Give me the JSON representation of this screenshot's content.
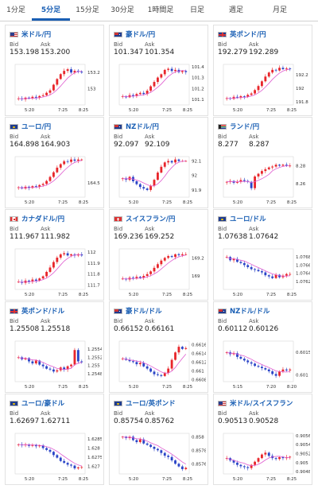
{
  "tabs": [
    {
      "label": "1分足",
      "active": false
    },
    {
      "label": "5分足",
      "active": true
    },
    {
      "label": "15分足",
      "active": false
    },
    {
      "label": "30分足",
      "active": false
    },
    {
      "label": "1時間足",
      "active": false
    },
    {
      "label": "日足",
      "active": false
    },
    {
      "label": "週足",
      "active": false
    },
    {
      "label": "月足",
      "active": false
    }
  ],
  "labels": {
    "bid": "Bid",
    "ask": "Ask"
  },
  "colors": {
    "up": "#e8262b",
    "down": "#2a44c7",
    "ma": "#e05cd0",
    "accent": "#1a5fb4"
  },
  "pairs": [
    {
      "name": "米ドル/円",
      "flag": "us-flag-icon",
      "bid": "153.198",
      "ask": "153.200",
      "chart_data": {
        "type": "candlestick",
        "x_ticks": [
          "5:20",
          "7:25",
          "8:25"
        ],
        "y_ticks": [
          "153.2",
          "153"
        ],
        "ylim": [
          152.8,
          153.3
        ],
        "trend": [
          152.88,
          152.87,
          152.89,
          152.88,
          152.9,
          152.89,
          152.91,
          152.92,
          152.95,
          152.98,
          153.05,
          153.12,
          153.18,
          153.22,
          153.24,
          153.2,
          153.22,
          153.21,
          153.2
        ]
      }
    },
    {
      "name": "豪ドル/円",
      "flag": "au-flag-icon",
      "bid": "101.347",
      "ask": "101.354",
      "chart_data": {
        "type": "candlestick",
        "x_ticks": [
          "5:20",
          "7:25",
          "8:25"
        ],
        "y_ticks": [
          "101.4",
          "101.3",
          "101.2",
          "101.1"
        ],
        "ylim": [
          101.05,
          101.42
        ],
        "trend": [
          101.13,
          101.12,
          101.14,
          101.13,
          101.15,
          101.16,
          101.15,
          101.18,
          101.22,
          101.26,
          101.3,
          101.33,
          101.37,
          101.38,
          101.36,
          101.37,
          101.35,
          101.36,
          101.35
        ]
      }
    },
    {
      "name": "英ポンド/円",
      "flag": "uk-flag-icon",
      "bid": "192.279",
      "ask": "192.289",
      "chart_data": {
        "type": "candlestick",
        "x_ticks": [
          "5:20",
          "7:25",
          "8:25"
        ],
        "y_ticks": [
          "192.2",
          "192",
          "191.8"
        ],
        "ylim": [
          191.75,
          192.35
        ],
        "trend": [
          191.85,
          191.84,
          191.87,
          191.86,
          191.88,
          191.87,
          191.9,
          191.92,
          191.97,
          192.03,
          192.1,
          192.17,
          192.23,
          192.27,
          192.26,
          192.3,
          192.28,
          192.29,
          192.28
        ]
      }
    },
    {
      "name": "ユーロ/円",
      "flag": "eu-flag-icon",
      "bid": "164.898",
      "ask": "164.903",
      "chart_data": {
        "type": "candlestick",
        "x_ticks": [
          "5:20",
          "7:25",
          "8:25"
        ],
        "y_ticks": [
          "164.5"
        ],
        "ylim": [
          164.25,
          164.95
        ],
        "trend": [
          164.42,
          164.4,
          164.43,
          164.41,
          164.44,
          164.43,
          164.46,
          164.48,
          164.53,
          164.6,
          164.68,
          164.76,
          164.82,
          164.87,
          164.86,
          164.9,
          164.88,
          164.9,
          164.9
        ]
      }
    },
    {
      "name": "NZドル/円",
      "flag": "nz-flag-icon",
      "bid": "92.097",
      "ask": "92.109",
      "chart_data": {
        "type": "candlestick",
        "x_ticks": [
          "5:20",
          "7:25",
          "8:25"
        ],
        "y_ticks": [
          "92.1",
          "92",
          "91.9"
        ],
        "ylim": [
          91.85,
          92.13
        ],
        "trend": [
          91.98,
          91.97,
          91.99,
          91.96,
          91.94,
          91.92,
          91.91,
          91.9,
          91.93,
          91.97,
          92.02,
          92.06,
          92.09,
          92.1,
          92.09,
          92.11,
          92.1,
          92.1,
          92.1
        ]
      }
    },
    {
      "name": "ランド/円",
      "flag": "za-flag-icon",
      "bid": "8.277",
      "ask": "8.287",
      "chart_data": {
        "type": "candlestick",
        "x_ticks": [
          "5:20",
          "7:25",
          "8:25"
        ],
        "y_ticks": [
          "8.28",
          "8.26"
        ],
        "ylim": [
          8.245,
          8.29
        ],
        "trend": [
          8.262,
          8.263,
          8.261,
          8.262,
          8.264,
          8.263,
          8.262,
          8.255,
          8.268,
          8.271,
          8.274,
          8.276,
          8.278,
          8.279,
          8.281,
          8.28,
          8.281,
          8.28,
          8.28
        ]
      }
    },
    {
      "name": "カナダドル/円",
      "flag": "ca-flag-icon",
      "bid": "111.967",
      "ask": "111.982",
      "chart_data": {
        "type": "candlestick",
        "x_ticks": [
          "5:20",
          "7:25",
          "8:25"
        ],
        "y_ticks": [
          "112",
          "111.9",
          "111.8",
          "111.7"
        ],
        "ylim": [
          111.66,
          112.03
        ],
        "trend": [
          111.73,
          111.72,
          111.74,
          111.73,
          111.75,
          111.74,
          111.76,
          111.78,
          111.82,
          111.86,
          111.91,
          111.95,
          111.98,
          111.99,
          111.97,
          111.98,
          111.97,
          111.98,
          111.97
        ]
      }
    },
    {
      "name": "スイスフラン/円",
      "flag": "ch-flag-icon",
      "bid": "169.236",
      "ask": "169.252",
      "chart_data": {
        "type": "candlestick",
        "x_ticks": [
          "5:20",
          "7:25",
          "8:25"
        ],
        "y_ticks": [
          "169.2",
          "169"
        ],
        "ylim": [
          168.85,
          169.3
        ],
        "trend": [
          168.97,
          168.96,
          168.98,
          168.97,
          168.99,
          168.98,
          169.0,
          169.02,
          169.05,
          169.09,
          169.13,
          169.17,
          169.2,
          169.22,
          169.21,
          169.24,
          169.23,
          169.24,
          169.24
        ]
      }
    },
    {
      "name": "ユーロ/ドル",
      "flag": "eu-us-flag-icon",
      "bid": "1.07638",
      "ask": "1.07642",
      "chart_data": {
        "type": "candlestick",
        "x_ticks": [
          "5:20",
          "7:25",
          "8:25"
        ],
        "y_ticks": [
          "1.0768",
          "1.0766",
          "1.0764",
          "1.0762"
        ],
        "ylim": [
          1.076,
          1.077
        ],
        "trend": [
          1.0768,
          1.07672,
          1.07675,
          1.07668,
          1.07665,
          1.0766,
          1.07655,
          1.0765,
          1.07648,
          1.07645,
          1.07642,
          1.07635,
          1.07632,
          1.07628,
          1.07636,
          1.0763,
          1.07634,
          1.07638,
          1.07638
        ]
      }
    },
    {
      "name": "英ポンド/ドル",
      "flag": "uk-us-flag-icon",
      "bid": "1.25508",
      "ask": "1.25518",
      "chart_data": {
        "type": "candlestick",
        "x_ticks": [
          "5:20",
          "7:25",
          "8:25"
        ],
        "y_ticks": [
          "1.2554",
          "1.2552",
          "1.255",
          "1.2548"
        ],
        "ylim": [
          1.2546,
          1.2556
        ],
        "trend": [
          1.2552,
          1.25515,
          1.25518,
          1.2551,
          1.25505,
          1.25512,
          1.25502,
          1.25498,
          1.25492,
          1.2549,
          1.25485,
          1.25488,
          1.25495,
          1.2549,
          1.25498,
          1.25502,
          1.25538,
          1.2551,
          1.25508
        ]
      }
    },
    {
      "name": "豪ドル/ドル",
      "flag": "au-us-flag-icon",
      "bid": "0.66152",
      "ask": "0.66161",
      "chart_data": {
        "type": "candlestick",
        "x_ticks": [
          "5:20",
          "7:25",
          "8:25"
        ],
        "y_ticks": [
          "0.6616",
          "0.6614",
          "0.6612",
          "0.661",
          "0.6608"
        ],
        "ylim": [
          0.66075,
          0.66168
        ],
        "trend": [
          0.66128,
          0.66125,
          0.66122,
          0.6612,
          0.66115,
          0.66118,
          0.6611,
          0.66105,
          0.66098,
          0.66092,
          0.6609,
          0.66088,
          0.66095,
          0.66105,
          0.66125,
          0.66142,
          0.66155,
          0.6615,
          0.66152
        ]
      }
    },
    {
      "name": "NZドル/ドル",
      "flag": "nz-us-flag-icon",
      "bid": "0.60112",
      "ask": "0.60126",
      "chart_data": {
        "type": "candlestick",
        "x_ticks": [
          "5:15",
          "7:20",
          "8:20"
        ],
        "y_ticks": [
          "0.6015",
          "0.601"
        ],
        "ylim": [
          0.60085,
          0.60175
        ],
        "trend": [
          0.6015,
          0.60146,
          0.60148,
          0.6014,
          0.60136,
          0.60132,
          0.60128,
          0.60125,
          0.6012,
          0.60118,
          0.60115,
          0.60112,
          0.60108,
          0.60102,
          0.60098,
          0.60108,
          0.60112,
          0.6011,
          0.60112
        ]
      }
    },
    {
      "name": "ユーロ/豪ドル",
      "flag": "eu-au-flag-icon",
      "bid": "1.62697",
      "ask": "1.62711",
      "chart_data": {
        "type": "candlestick",
        "x_ticks": [
          "5:20",
          "7:25",
          "8:25"
        ],
        "y_ticks": [
          "1.6285",
          "1.628",
          "1.6275",
          "1.627"
        ],
        "ylim": [
          1.6266,
          1.6288
        ],
        "trend": [
          1.6282,
          1.62815,
          1.6282,
          1.62812,
          1.62818,
          1.6281,
          1.62815,
          1.628,
          1.6279,
          1.6278,
          1.62762,
          1.62748,
          1.6273,
          1.6272,
          1.6271,
          1.62705,
          1.6269,
          1.62695,
          1.62697
        ]
      }
    },
    {
      "name": "ユーロ/英ポンド",
      "flag": "eu-uk-flag-icon",
      "bid": "0.85754",
      "ask": "0.85762",
      "chart_data": {
        "type": "candlestick",
        "x_ticks": [
          "5:20",
          "7:25",
          "8:25"
        ],
        "y_ticks": [
          "0.858",
          "0.8578",
          "0.8576"
        ],
        "ylim": [
          0.85745,
          0.85805
        ],
        "trend": [
          0.858,
          0.85798,
          0.858,
          0.85795,
          0.85792,
          0.85796,
          0.8579,
          0.85788,
          0.85785,
          0.85782,
          0.8578,
          0.85776,
          0.85772,
          0.8577,
          0.85765,
          0.8576,
          0.85756,
          0.85752,
          0.85754
        ]
      }
    },
    {
      "name": "米ドル/スイスフラン",
      "flag": "us-ch-flag-icon",
      "bid": "0.90513",
      "ask": "0.90528",
      "chart_data": {
        "type": "candlestick",
        "x_ticks": [
          "5:20",
          "7:25",
          "8:25"
        ],
        "y_ticks": [
          "0.9056",
          "0.9054",
          "0.9052",
          "0.905",
          "0.9048"
        ],
        "ylim": [
          0.90475,
          0.90565
        ],
        "trend": [
          0.9051,
          0.90505,
          0.905,
          0.90495,
          0.90492,
          0.9049,
          0.90488,
          0.90495,
          0.90502,
          0.9051,
          0.90518,
          0.90522,
          0.90515,
          0.9051,
          0.90508,
          0.90512,
          0.9051,
          0.90512,
          0.90513
        ]
      }
    }
  ]
}
